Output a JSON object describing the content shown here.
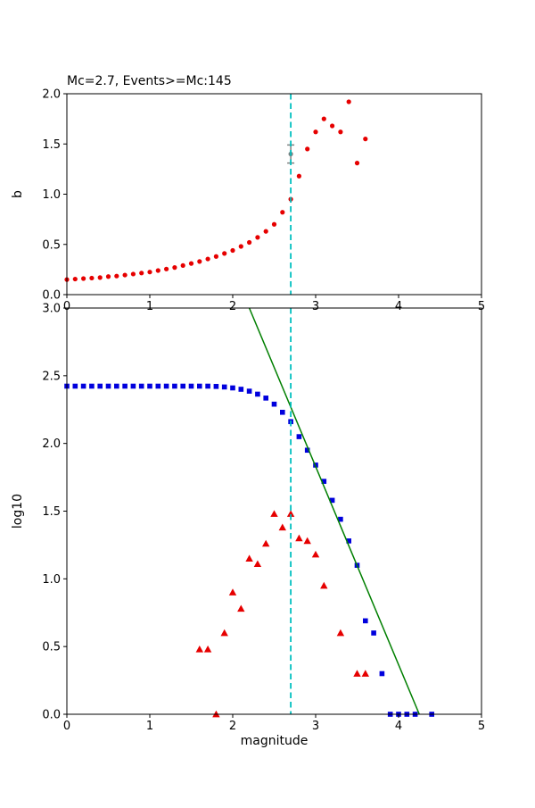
{
  "figure": {
    "background": "#ffffff",
    "axis_color": "#000000"
  },
  "chart_data": [
    {
      "type": "scatter",
      "id": "b-value-panel",
      "title": "Mc=2.7, Events>=Mc:145",
      "xlabel": "",
      "ylabel": "b",
      "xlim": [
        0,
        5
      ],
      "ylim": [
        0.0,
        2.0
      ],
      "xticks": [
        0,
        1,
        2,
        3,
        4,
        5
      ],
      "yticks": [
        0.0,
        0.5,
        1.0,
        1.5,
        2.0
      ],
      "grid": false,
      "vline": {
        "x": 2.7,
        "color": "#00bfbf",
        "style": "dashed"
      },
      "series": [
        {
          "name": "b-vs-cutoff-magnitude",
          "marker": "circle",
          "color": "#e60000",
          "x": [
            0,
            0.1,
            0.2,
            0.3,
            0.4,
            0.5,
            0.6,
            0.7,
            0.8,
            0.9,
            1.0,
            1.1,
            1.2,
            1.3,
            1.4,
            1.5,
            1.6,
            1.7,
            1.8,
            1.9,
            2.0,
            2.1,
            2.2,
            2.3,
            2.4,
            2.5,
            2.6,
            2.7,
            2.8,
            2.9,
            3.0,
            3.1,
            3.2,
            3.3,
            3.4,
            3.5,
            3.6
          ],
          "y": [
            0.15,
            0.155,
            0.16,
            0.165,
            0.17,
            0.18,
            0.185,
            0.195,
            0.205,
            0.215,
            0.225,
            0.24,
            0.255,
            0.27,
            0.29,
            0.31,
            0.33,
            0.355,
            0.38,
            0.41,
            0.44,
            0.48,
            0.52,
            0.57,
            0.63,
            0.7,
            0.82,
            0.95,
            1.18,
            1.45,
            1.62,
            1.75,
            1.68,
            1.62,
            1.92,
            1.31,
            1.55
          ]
        },
        {
          "name": "b-at-mc-errorbar",
          "marker": "point-errorbar",
          "color": "#7f7f7f",
          "x": [
            2.7
          ],
          "y": [
            1.4
          ],
          "yerr": [
            0.09
          ]
        }
      ]
    },
    {
      "type": "scatter",
      "id": "frequency-magnitude-panel",
      "title": "",
      "xlabel": "magnitude",
      "ylabel": "log10",
      "xlim": [
        0,
        5
      ],
      "ylim": [
        0.0,
        3.0
      ],
      "xticks": [
        0,
        1,
        2,
        3,
        4,
        5
      ],
      "yticks": [
        0.0,
        0.5,
        1.0,
        1.5,
        2.0,
        2.5,
        3.0
      ],
      "grid": false,
      "vline": {
        "x": 2.7,
        "color": "#00bfbf",
        "style": "dashed"
      },
      "series": [
        {
          "name": "cumulative-event-counts",
          "marker": "square",
          "color": "#0000dd",
          "x": [
            0,
            0.1,
            0.2,
            0.3,
            0.4,
            0.5,
            0.6,
            0.7,
            0.8,
            0.9,
            1.0,
            1.1,
            1.2,
            1.3,
            1.4,
            1.5,
            1.6,
            1.7,
            1.8,
            1.9,
            2.0,
            2.1,
            2.2,
            2.3,
            2.4,
            2.5,
            2.6,
            2.7,
            2.8,
            2.9,
            3.0,
            3.1,
            3.2,
            3.3,
            3.4,
            3.5,
            3.6,
            3.7,
            3.8,
            3.9,
            4.0,
            4.1,
            4.2,
            4.4
          ],
          "y": [
            2.423,
            2.423,
            2.423,
            2.423,
            2.423,
            2.423,
            2.423,
            2.423,
            2.423,
            2.423,
            2.423,
            2.423,
            2.423,
            2.423,
            2.423,
            2.423,
            2.423,
            2.423,
            2.421,
            2.417,
            2.41,
            2.4,
            2.386,
            2.364,
            2.335,
            2.29,
            2.23,
            2.161,
            2.05,
            1.95,
            1.84,
            1.72,
            1.58,
            1.44,
            1.28,
            1.1,
            0.69,
            0.6,
            0.3,
            0.0,
            0.0,
            0.0,
            0.0,
            0.0
          ]
        },
        {
          "name": "binned-event-counts",
          "marker": "triangle",
          "color": "#e60000",
          "x": [
            1.6,
            1.7,
            1.8,
            1.9,
            2.0,
            2.1,
            2.2,
            2.3,
            2.4,
            2.5,
            2.6,
            2.7,
            2.8,
            2.9,
            3.0,
            3.1,
            3.3,
            3.5,
            3.6
          ],
          "y": [
            0.48,
            0.48,
            0.0,
            0.6,
            0.9,
            0.78,
            1.15,
            1.11,
            1.26,
            1.48,
            1.38,
            1.48,
            1.3,
            1.28,
            1.18,
            0.95,
            0.6,
            0.3,
            0.3
          ]
        },
        {
          "name": "gutenberg-richter-fit-line",
          "marker": "line",
          "color": "#007f00",
          "x": [
            2.2,
            4.25
          ],
          "y": [
            3.0,
            0.0
          ]
        }
      ]
    }
  ]
}
